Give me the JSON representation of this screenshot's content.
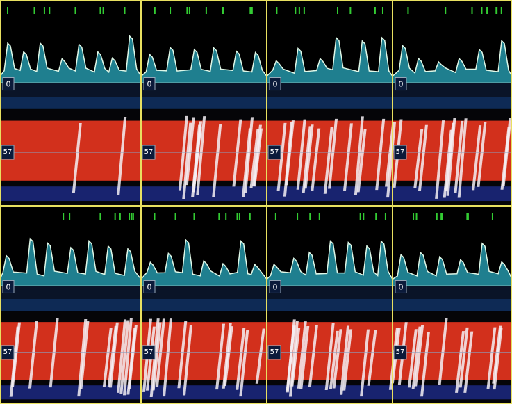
{
  "panels": [
    {
      "waveform_label": "0",
      "spectrogram_label": "57"
    },
    {
      "waveform_label": "0",
      "spectrogram_label": "57"
    },
    {
      "waveform_label": "0",
      "spectrogram_label": "57"
    },
    {
      "waveform_label": "0",
      "spectrogram_label": "57"
    },
    {
      "waveform_label": "0",
      "spectrogram_label": "57"
    },
    {
      "waveform_label": "0",
      "spectrogram_label": "57"
    },
    {
      "waveform_label": "0",
      "spectrogram_label": "57"
    },
    {
      "waveform_label": "0",
      "spectrogram_label": "57"
    }
  ]
}
